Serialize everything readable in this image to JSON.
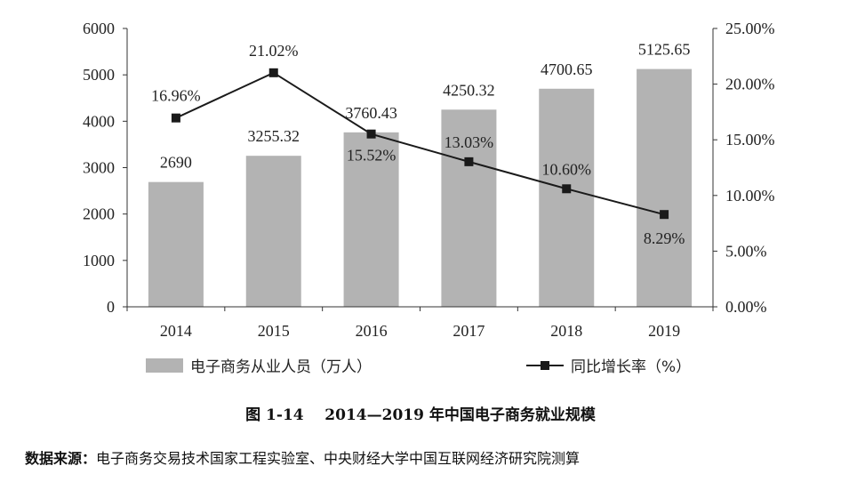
{
  "chart_data": {
    "type": "bar",
    "categories": [
      "2014",
      "2015",
      "2016",
      "2017",
      "2018",
      "2019"
    ],
    "series": [
      {
        "name": "电子商务从业人员（万人）",
        "kind": "bar",
        "axis": "left",
        "values": [
          2690,
          3255.32,
          3760.43,
          4250.32,
          4700.65,
          5125.65
        ],
        "labels": [
          "2690",
          "3255.32",
          "3760.43",
          "4250.32",
          "4700.65",
          "5125.65"
        ],
        "color": "#b3b3b3"
      },
      {
        "name": "同比增长率（%）",
        "kind": "line",
        "axis": "right",
        "values": [
          16.96,
          21.02,
          15.52,
          13.03,
          10.6,
          8.29
        ],
        "labels": [
          "16.96%",
          "21.02%",
          "15.52%",
          "13.03%",
          "10.60%",
          "8.29%"
        ],
        "color": "#1a1a1a"
      }
    ],
    "y_left": {
      "ylim": [
        0,
        6000
      ],
      "ticks": [
        "0",
        "1000",
        "2000",
        "3000",
        "4000",
        "5000",
        "6000"
      ]
    },
    "y_right": {
      "ylim": [
        0,
        25
      ],
      "ticks": [
        "0.00%",
        "5.00%",
        "10.00%",
        "15.00%",
        "20.00%",
        "25.00%"
      ]
    },
    "legend_placement": "bottom",
    "grid": false
  },
  "caption": {
    "number": "图 1-14",
    "text": "2014—2019 年中国电子商务就业规模"
  },
  "source": {
    "label": "数据来源：",
    "text": "电子商务交易技术国家工程实验室、中央财经大学中国互联网经济研究院测算"
  }
}
